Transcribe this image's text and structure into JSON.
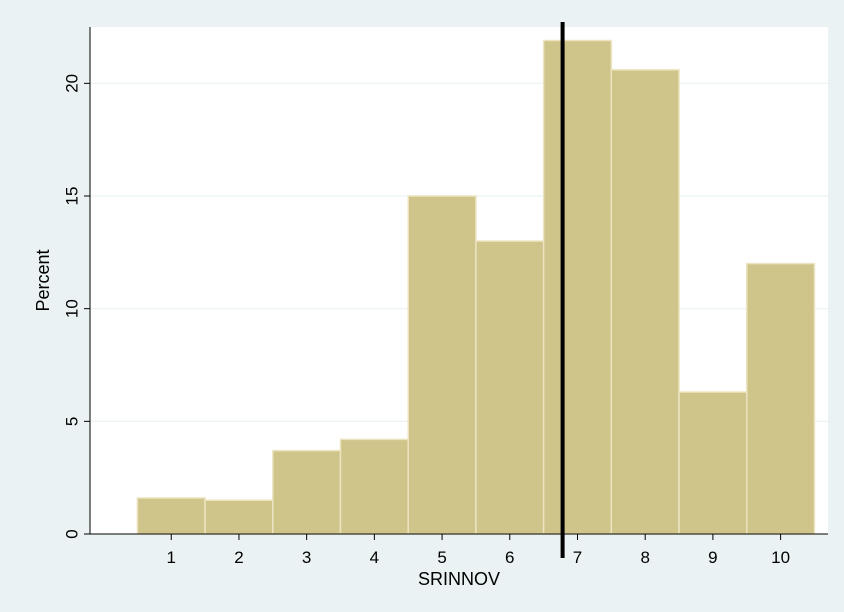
{
  "chart_data": {
    "type": "bar",
    "title": "",
    "xlabel": "SRINNOV",
    "ylabel": "Percent",
    "categories": [
      "1",
      "2",
      "3",
      "4",
      "5",
      "6",
      "7",
      "8",
      "9",
      "10"
    ],
    "values": [
      1.6,
      1.5,
      3.7,
      4.2,
      15.0,
      13.0,
      21.9,
      20.6,
      6.3,
      12.0
    ],
    "xlim": [
      -0.2,
      10.7
    ],
    "ylim": [
      0,
      22.5
    ],
    "yticks": [
      "0",
      "5",
      "10",
      "15",
      "20"
    ],
    "grid": true,
    "reference_line": {
      "x": 6.78
    },
    "colors": {
      "background": "#eaf2f3",
      "plot_area": "#ffffff",
      "bar_fill": "#cfc48a",
      "bar_edge": "#ece4c0",
      "gridline": "#eaf2f3",
      "axis": "#000000",
      "reference_line": "#000000"
    }
  }
}
